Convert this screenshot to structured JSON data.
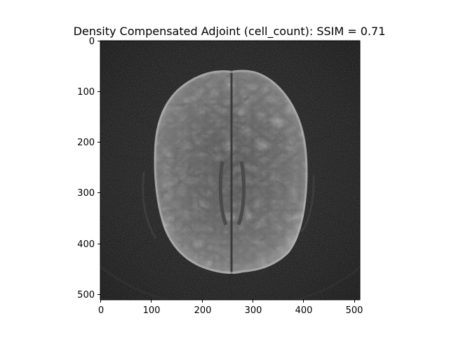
{
  "figure": {
    "title": "Density Compensated Adjoint (cell_count): SSIM = 0.71"
  },
  "axes": {
    "x_ticks": [
      "0",
      "100",
      "200",
      "300",
      "400",
      "500"
    ],
    "y_ticks": [
      "0",
      "100",
      "200",
      "300",
      "400",
      "500"
    ]
  },
  "image": {
    "description_semantic": "grayscale-mri-brain-axial-slice",
    "colormap": "gray",
    "background_color": "#0a0a0a",
    "tissue_color": "#6e6e6e",
    "bright_edge_color": "#c8c8c8"
  }
}
